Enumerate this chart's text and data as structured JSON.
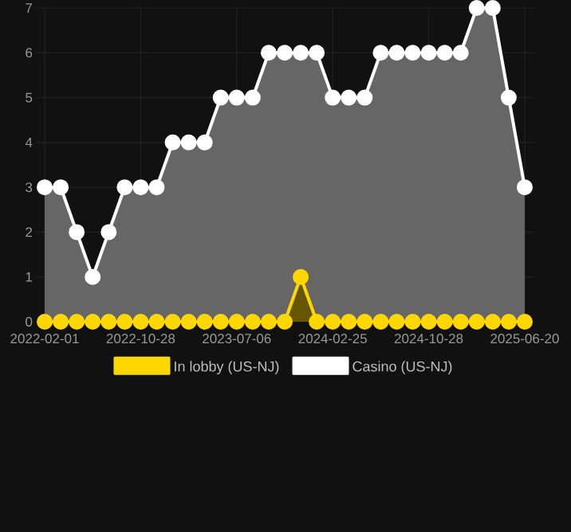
{
  "chart_data": {
    "type": "area",
    "categories": [
      "2022-02-01",
      null,
      null,
      null,
      null,
      null,
      "2022-10-28",
      null,
      null,
      null,
      null,
      null,
      "2023-07-06",
      null,
      null,
      null,
      null,
      null,
      "2024-02-25",
      null,
      null,
      null,
      null,
      null,
      "2024-10-28",
      null,
      null,
      null,
      null,
      null,
      "2025-06-20"
    ],
    "series": [
      {
        "name": "In lobby (US-NJ)",
        "color": "#ffd700",
        "values": [
          0,
          0,
          0,
          0,
          0,
          0,
          0,
          0,
          0,
          0,
          0,
          0,
          0,
          0,
          0,
          0,
          1,
          0,
          0,
          0,
          0,
          0,
          0,
          0,
          0,
          0,
          0,
          0,
          0,
          0,
          0
        ]
      },
      {
        "name": "Casino (US-NJ)",
        "color": "#ffffff",
        "values": [
          3,
          3,
          2,
          1,
          2,
          3,
          3,
          3,
          4,
          4,
          4,
          5,
          5,
          5,
          6,
          6,
          6,
          6,
          5,
          5,
          5,
          6,
          6,
          6,
          6,
          6,
          6,
          7,
          7,
          5,
          3
        ]
      }
    ],
    "ylim": [
      0,
      7
    ],
    "yticks": [
      0,
      1,
      2,
      3,
      4,
      5,
      6,
      7
    ],
    "grid": true,
    "legend": "bottom",
    "marker": "circle",
    "line_style": "solid"
  }
}
